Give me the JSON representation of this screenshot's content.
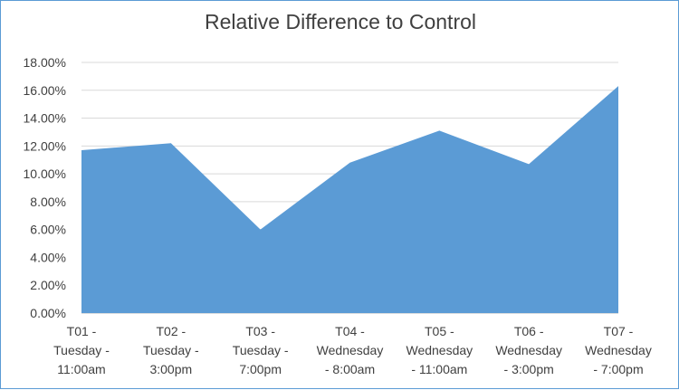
{
  "chart_data": {
    "type": "area",
    "title": "Relative Difference to Control",
    "xlabel": "",
    "ylabel": "",
    "ylim": [
      0,
      18
    ],
    "y_ticks": [
      "0.00%",
      "2.00%",
      "4.00%",
      "6.00%",
      "8.00%",
      "10.00%",
      "12.00%",
      "14.00%",
      "16.00%",
      "18.00%"
    ],
    "grid": true,
    "categories": [
      [
        "T01 -",
        "Tuesday -",
        "11:00am"
      ],
      [
        "T02 -",
        "Tuesday -",
        "3:00pm"
      ],
      [
        "T03 -",
        "Tuesday -",
        "7:00pm"
      ],
      [
        "T04 -",
        "Wednesday",
        "- 8:00am"
      ],
      [
        "T05 -",
        "Wednesday",
        "- 11:00am"
      ],
      [
        "T06 -",
        "Wednesday",
        "- 3:00pm"
      ],
      [
        "T07 -",
        "Wednesday",
        "- 7:00pm"
      ]
    ],
    "series": [
      {
        "name": "Relative Difference",
        "values": [
          11.7,
          12.2,
          6.0,
          10.8,
          13.1,
          10.7,
          16.3
        ]
      }
    ],
    "colors": {
      "fill": "#5b9bd5",
      "grid": "#d9d9d9",
      "axis": "#bfbfbf",
      "frame": "#5b9bd5"
    }
  }
}
